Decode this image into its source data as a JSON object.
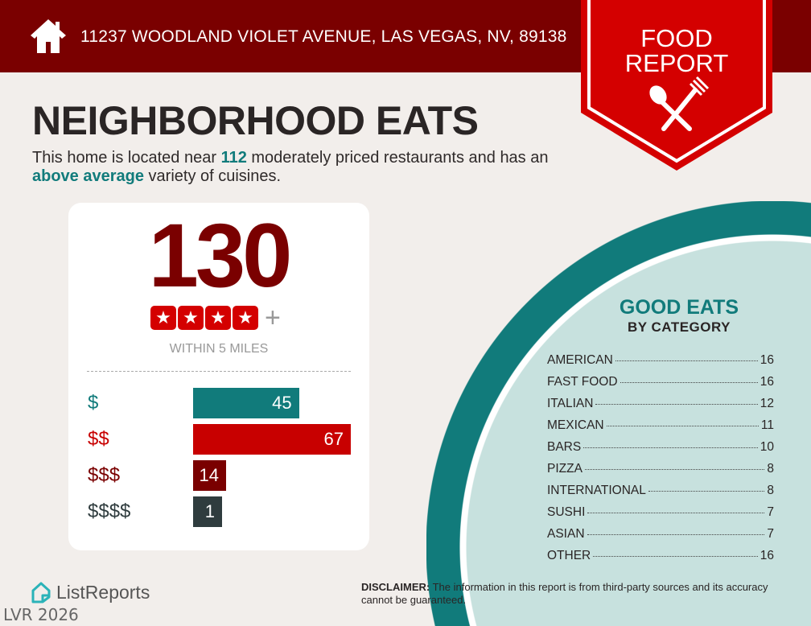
{
  "header": {
    "address": "11237 WOODLAND VIOLET AVENUE, LAS VEGAS, NV, 89138",
    "badge_line1": "FOOD",
    "badge_line2": "REPORT"
  },
  "title": "NEIGHBORHOOD EATS",
  "subtitle": {
    "p1": "This home is located near ",
    "count": "112",
    "p2": " moderately priced restaurants and has an ",
    "variety": "above average",
    "p3": " variety of cuisines."
  },
  "card": {
    "total": "130",
    "stars": 4,
    "plus": "+",
    "within": "WITHIN 5 MILES"
  },
  "chart_data": {
    "type": "bar",
    "orientation": "horizontal",
    "categories": [
      "$",
      "$$",
      "$$$",
      "$$$$"
    ],
    "values": [
      45,
      67,
      14,
      1
    ],
    "colors": [
      "#117b7b",
      "#c80000",
      "#7a0000",
      "#2f3c3e"
    ]
  },
  "good_eats": {
    "title": "GOOD EATS",
    "subtitle": "BY CATEGORY",
    "items": [
      {
        "name": "AMERICAN",
        "count": "16"
      },
      {
        "name": "FAST FOOD",
        "count": "16"
      },
      {
        "name": "ITALIAN",
        "count": "12"
      },
      {
        "name": "MEXICAN",
        "count": "11"
      },
      {
        "name": "BARS",
        "count": "10"
      },
      {
        "name": "PIZZA",
        "count": "8"
      },
      {
        "name": "INTERNATIONAL",
        "count": "8"
      },
      {
        "name": "SUSHI",
        "count": "7"
      },
      {
        "name": "ASIAN",
        "count": "7"
      },
      {
        "name": "OTHER",
        "count": "16"
      }
    ]
  },
  "footer": {
    "logo": "ListReports",
    "watermark": "LVR 2026",
    "disclaimer_label": "DISCLAIMER:",
    "disclaimer": " The information in this report is from third-party sources and its accuracy cannot be guaranteed."
  },
  "colors": {
    "maroon": "#7a0000",
    "red": "#d40000",
    "teal": "#117b7b",
    "light_teal": "#c7e1de"
  }
}
